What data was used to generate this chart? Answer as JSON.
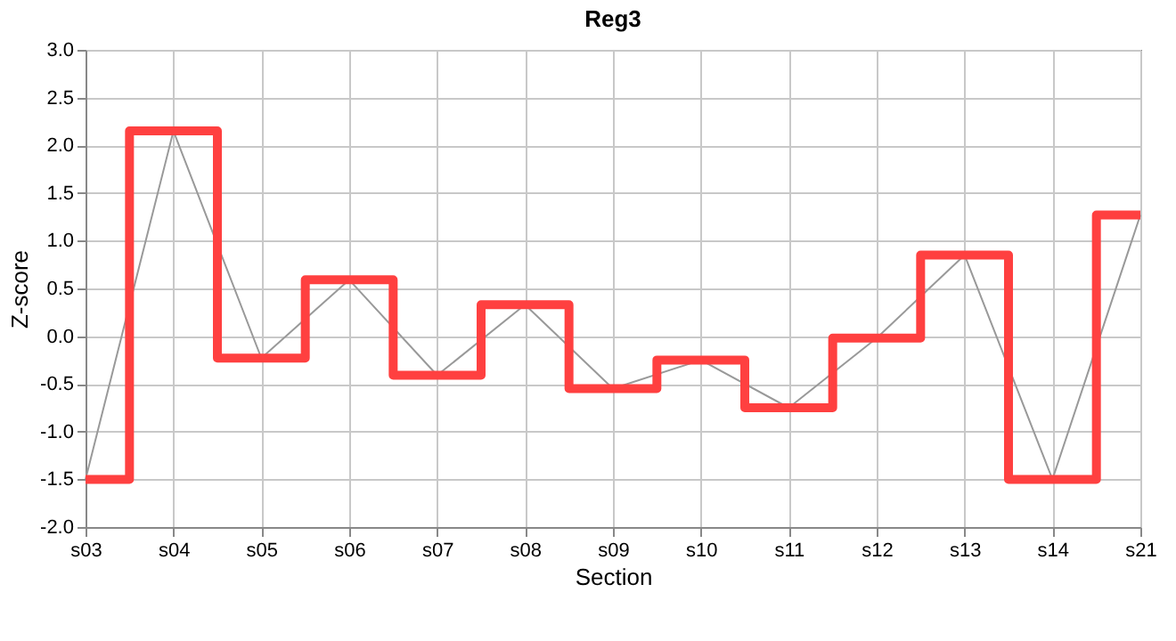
{
  "chart_data": {
    "type": "line",
    "title": "Reg3",
    "xlabel": "Section",
    "ylabel": "Z-score",
    "categories": [
      "s03",
      "s04",
      "s05",
      "s06",
      "s07",
      "s08",
      "s09",
      "s10",
      "s11",
      "s12",
      "s13",
      "s14",
      "s21"
    ],
    "series": [
      {
        "type": "line",
        "color": "#999999",
        "values": [
          -1.5,
          2.15,
          -0.23,
          0.59,
          -0.41,
          0.33,
          -0.55,
          -0.25,
          -0.75,
          -0.02,
          0.85,
          -1.5,
          1.27
        ]
      },
      {
        "type": "step",
        "color": "#ff4040",
        "values": [
          -1.5,
          2.15,
          -0.23,
          0.59,
          -0.41,
          0.33,
          -0.55,
          -0.25,
          -0.75,
          -0.02,
          0.85,
          -1.5,
          1.27
        ]
      }
    ],
    "ylim": [
      -2,
      3
    ],
    "yticks": [
      {
        "value": -2,
        "label": "-2.0"
      },
      -1.5,
      {
        "value": -1,
        "label": "-1.0"
      },
      -0.5,
      {
        "value": 0,
        "label": "0.0"
      },
      0.5,
      {
        "value": 1,
        "label": "1.0"
      },
      1.5,
      {
        "value": 2,
        "label": "2.0"
      },
      2.5,
      {
        "value": 3,
        "label": "3.0"
      }
    ],
    "grid": true
  }
}
